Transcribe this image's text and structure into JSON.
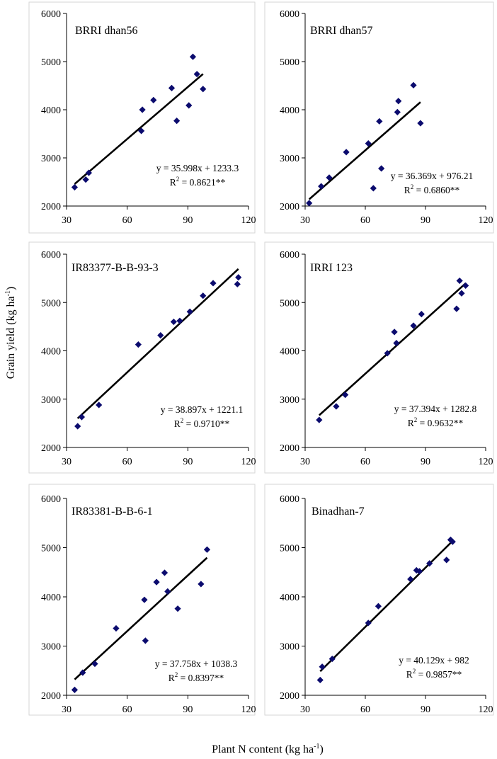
{
  "figure": {
    "ylabel": "Grain yield (kg ha",
    "ylabel_sup": "-1",
    "ylabel_end": ")",
    "xlabel": "Plant N content (kg ha",
    "xlabel_sup": "-1",
    "xlabel_end": ")"
  },
  "chart_data": [
    {
      "type": "scatter",
      "title": "BRRI dhan56",
      "xlim": [
        30,
        120
      ],
      "ylim": [
        2000,
        6000
      ],
      "xticks": [
        "30",
        "60",
        "90",
        "120"
      ],
      "yticks": [
        "2000",
        "3000",
        "4000",
        "5000",
        "6000"
      ],
      "x": [
        34,
        39.5,
        41,
        67,
        67.5,
        73,
        82,
        84.5,
        90.5,
        92.5,
        94.5,
        97.5
      ],
      "y": [
        2390,
        2550,
        2690,
        3560,
        4000,
        4200,
        4450,
        3770,
        4090,
        5100,
        4740,
        4430
      ],
      "trend": {
        "slope": 35.998,
        "intercept": 1233.3,
        "x_range": [
          34,
          97.5
        ]
      },
      "equation": "y = 35.998x + 1233.3",
      "r2_prefix": "R",
      "r2_sup": "2",
      "r2_value": " = 0.8621**"
    },
    {
      "type": "scatter",
      "title": "BRRI dhan57",
      "xlim": [
        30,
        120
      ],
      "ylim": [
        2000,
        6000
      ],
      "xticks": [
        "30",
        "60",
        "90",
        "120"
      ],
      "yticks": [
        "2000",
        "3000",
        "4000",
        "5000",
        "6000"
      ],
      "x": [
        32,
        38,
        42,
        50.5,
        61.5,
        64,
        67,
        68,
        76,
        76.5,
        84,
        87.5
      ],
      "y": [
        2060,
        2410,
        2590,
        3120,
        3300,
        2370,
        3760,
        2780,
        3950,
        4180,
        4510,
        3720
      ],
      "trend": {
        "slope": 36.369,
        "intercept": 976.21,
        "x_range": [
          32,
          87.5
        ]
      },
      "equation": "y = 36.369x + 976.21",
      "r2_prefix": "R",
      "r2_sup": "2",
      "r2_value": " = 0.6860**"
    },
    {
      "type": "scatter",
      "title": "IR83377-B-B-93-3",
      "xlim": [
        30,
        120
      ],
      "ylim": [
        2000,
        6000
      ],
      "xticks": [
        "30",
        "60",
        "90",
        "120"
      ],
      "yticks": [
        "2000",
        "3000",
        "4000",
        "5000",
        "6000"
      ],
      "x": [
        35.5,
        37.5,
        46,
        65.5,
        76.5,
        83,
        86,
        91,
        97.5,
        102.5,
        114.5,
        115
      ],
      "y": [
        2440,
        2630,
        2880,
        4130,
        4320,
        4600,
        4620,
        4810,
        5140,
        5400,
        5380,
        5520
      ],
      "trend": {
        "slope": 38.897,
        "intercept": 1221.1,
        "x_range": [
          35.5,
          115
        ]
      },
      "equation": "y = 38.897x + 1221.1",
      "r2_prefix": "R",
      "r2_sup": "2",
      "r2_value": " = 0.9710**"
    },
    {
      "type": "scatter",
      "title": "IRRI 123",
      "xlim": [
        30,
        120
      ],
      "ylim": [
        2000,
        6000
      ],
      "xticks": [
        "30",
        "60",
        "90",
        "120"
      ],
      "yticks": [
        "2000",
        "3000",
        "4000",
        "5000",
        "6000"
      ],
      "x": [
        37,
        45.5,
        50,
        71,
        74.5,
        75.5,
        84,
        88,
        105.5,
        107,
        108,
        110
      ],
      "y": [
        2570,
        2850,
        3090,
        3950,
        4390,
        4160,
        4520,
        4760,
        4870,
        5450,
        5190,
        5350
      ],
      "trend": {
        "slope": 37.394,
        "intercept": 1282.8,
        "x_range": [
          37,
          110
        ]
      },
      "equation": "y = 37.394x + 1282.8",
      "r2_prefix": "R",
      "r2_sup": "2",
      "r2_value": " = 0.9632**"
    },
    {
      "type": "scatter",
      "title": "IR83381-B-B-6-1",
      "xlim": [
        30,
        120
      ],
      "ylim": [
        2000,
        6000
      ],
      "xticks": [
        "30",
        "60",
        "90",
        "120"
      ],
      "yticks": [
        "2000",
        "3000",
        "4000",
        "5000",
        "6000"
      ],
      "x": [
        34,
        38,
        44,
        54.5,
        68.5,
        69,
        74.5,
        78.5,
        80,
        85,
        96.5,
        99.5
      ],
      "y": [
        2110,
        2460,
        2640,
        3360,
        3940,
        3110,
        4300,
        4490,
        4110,
        3760,
        4260,
        4960
      ],
      "trend": {
        "slope": 37.758,
        "intercept": 1038.3,
        "x_range": [
          34,
          99.5
        ]
      },
      "equation": "y = 37.758x + 1038.3",
      "r2_prefix": "R",
      "r2_sup": "2",
      "r2_value": " = 0.8397**"
    },
    {
      "type": "scatter",
      "title": "Binadhan-7",
      "xlim": [
        30,
        120
      ],
      "ylim": [
        2000,
        6000
      ],
      "xticks": [
        "30",
        "60",
        "90",
        "120"
      ],
      "yticks": [
        "2000",
        "3000",
        "4000",
        "5000",
        "6000"
      ],
      "x": [
        37.5,
        38.5,
        43.5,
        61.5,
        66.5,
        82.5,
        85.5,
        87,
        92,
        100.5,
        102.5,
        103.5
      ],
      "y": [
        2310,
        2580,
        2740,
        3470,
        3810,
        4360,
        4540,
        4520,
        4680,
        4750,
        5160,
        5120
      ],
      "trend": {
        "slope": 40.129,
        "intercept": 982,
        "x_range": [
          37.5,
          103.5
        ]
      },
      "equation": "y = 40.129x + 982",
      "r2_prefix": "R",
      "r2_sup": "2",
      "r2_value": " = 0.9857**"
    }
  ]
}
